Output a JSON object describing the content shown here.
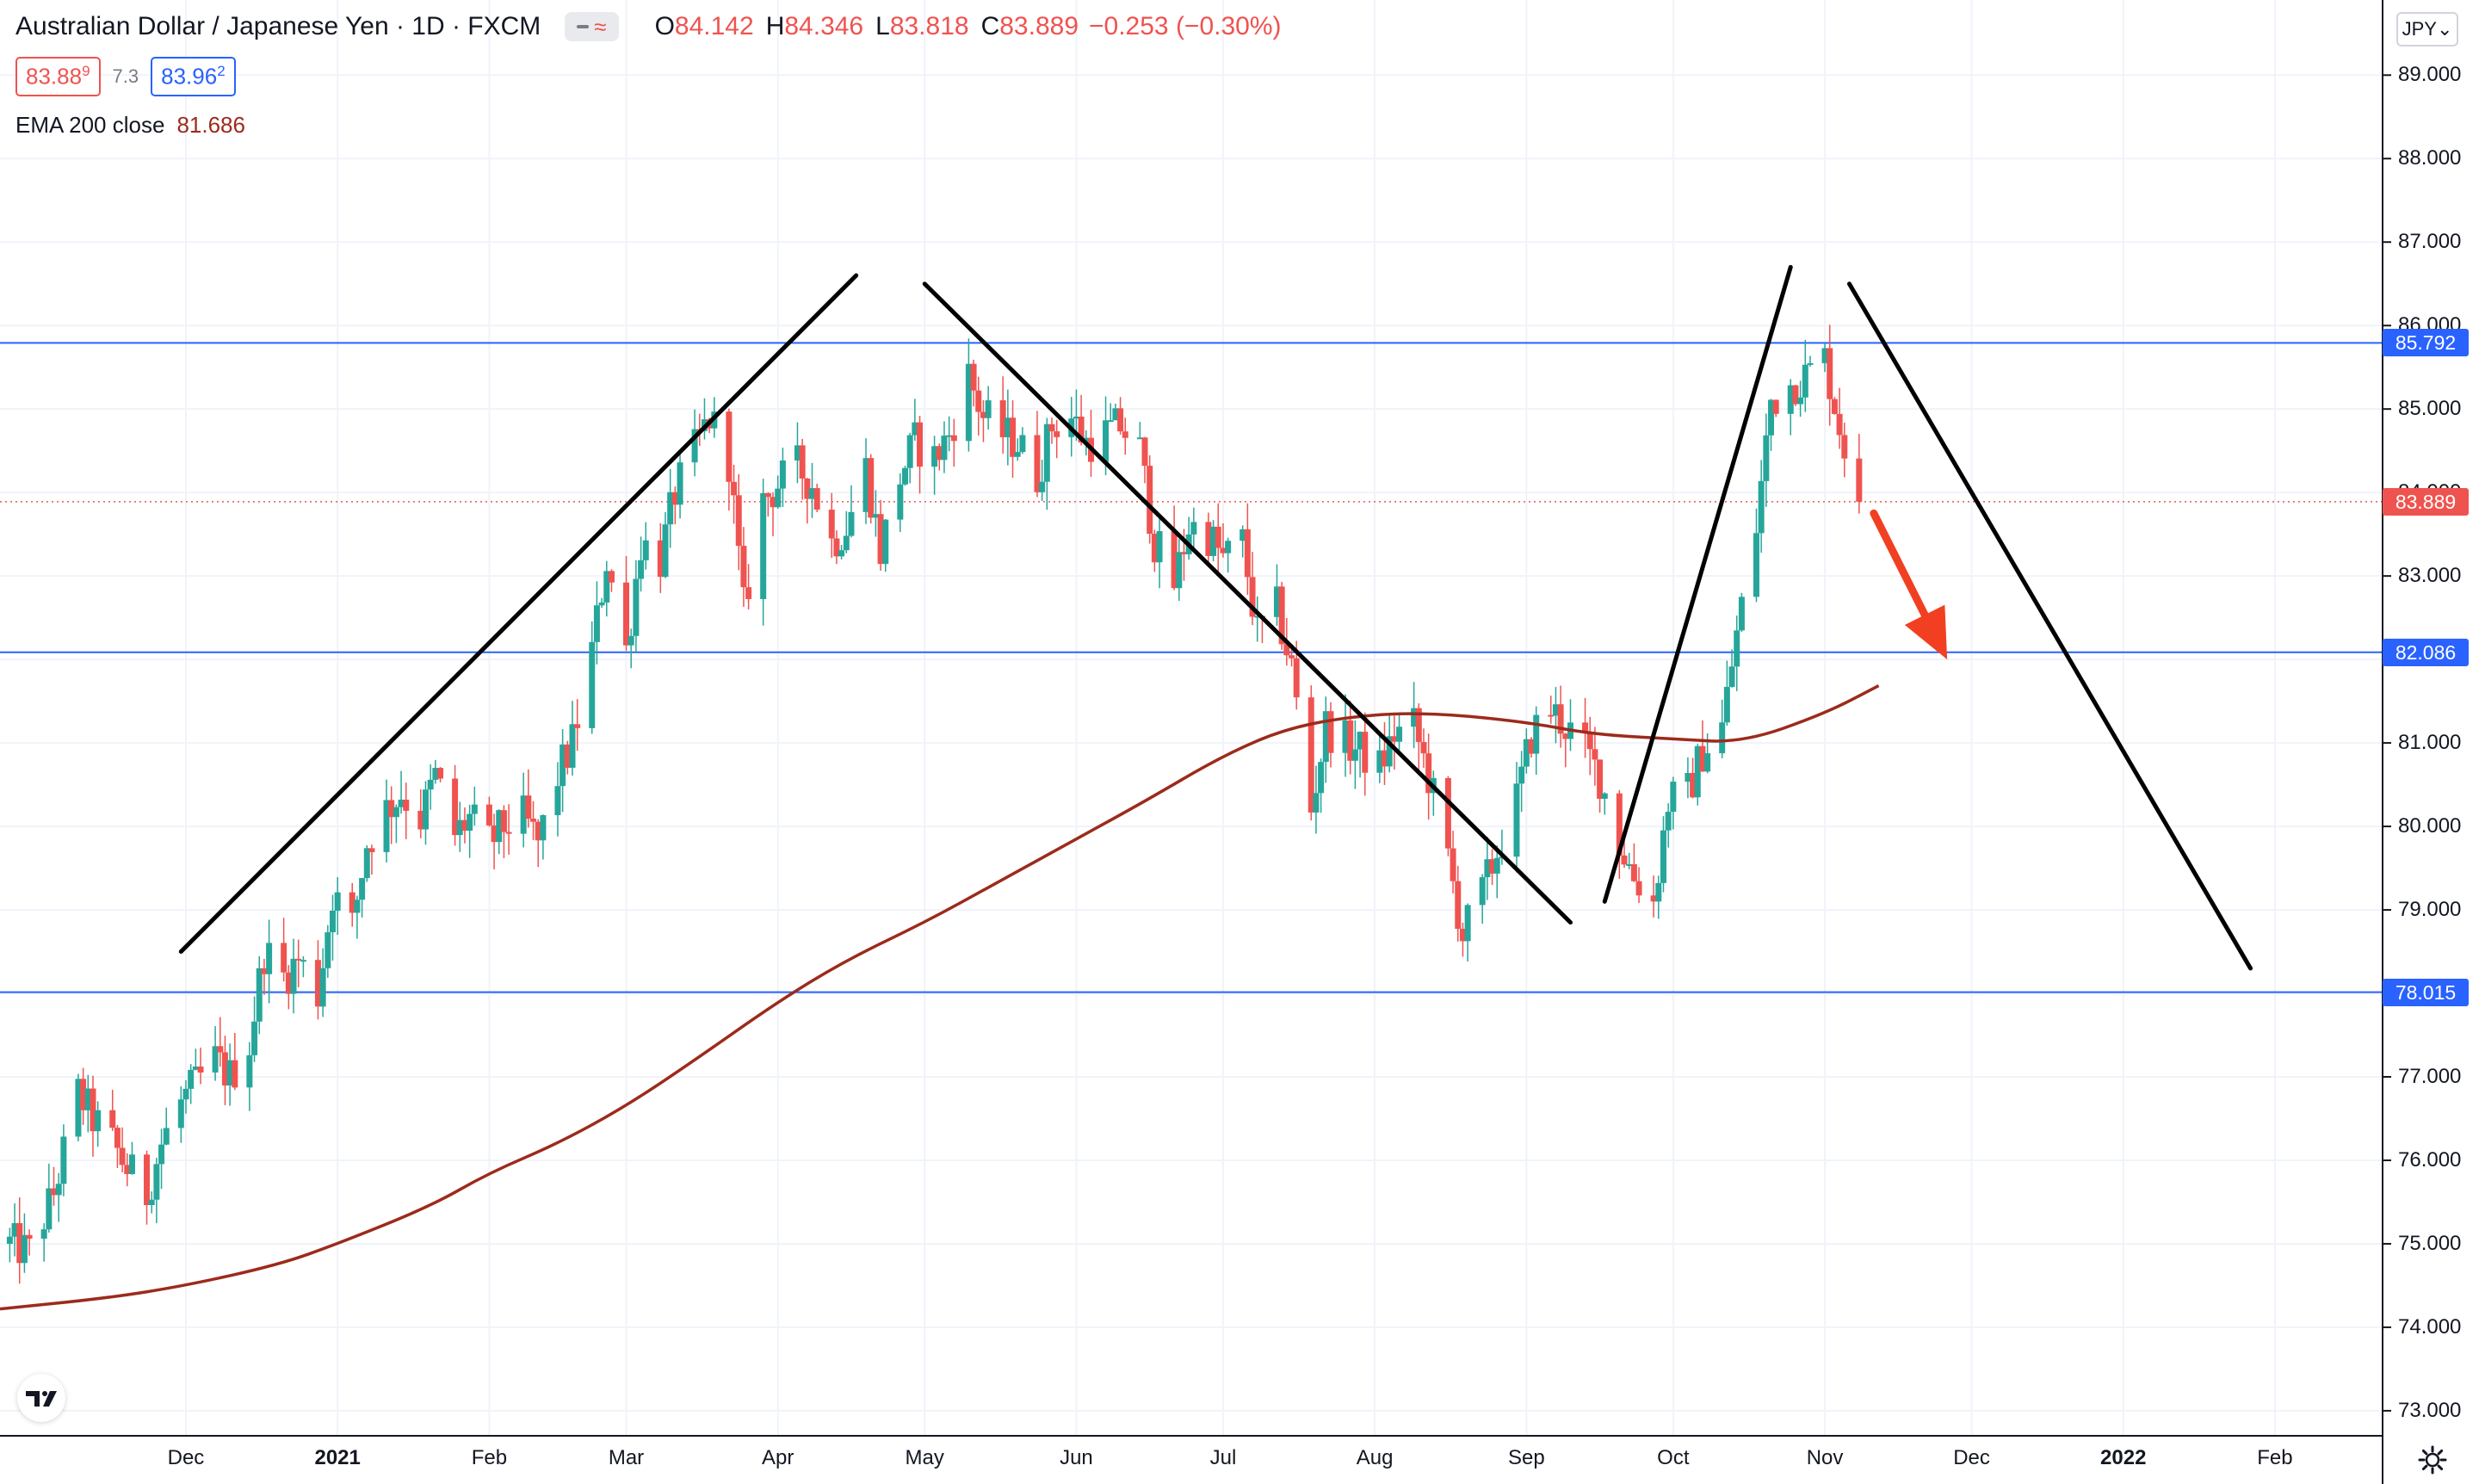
{
  "header": {
    "symbol_title": "Australian Dollar / Japanese Yen · 1D · FXCM",
    "ohlc": [
      {
        "label": "O",
        "value": "84.142"
      },
      {
        "label": "H",
        "value": "84.346"
      },
      {
        "label": "L",
        "value": "83.818"
      },
      {
        "label": "C",
        "value": "83.889"
      }
    ],
    "change": "−0.253 (−0.30%)",
    "bid": {
      "main": "83.88",
      "sup": "9"
    },
    "spread": "7.3",
    "ask": {
      "main": "83.96",
      "sup": "2"
    },
    "ema_label": "EMA 200 close",
    "ema_value": "81.686"
  },
  "toolbar": {
    "currency_label": "JPY",
    "currency_chevron": "⌄",
    "settings_icon": "gear-icon",
    "logo_icon": "tradingview-logo-icon",
    "visibility_icon": "eye-wave-icon"
  },
  "colors": {
    "up": "#26a69a",
    "down": "#ef5350",
    "ema": "#9c2b1b",
    "levels": "#2962ff",
    "trendlines": "#000000",
    "arrow": "#f23f22",
    "last_price": "#ef5350"
  },
  "chart_data": {
    "type": "candlestick",
    "symbol": "AUDJPY",
    "timeframe": "1D",
    "y_range": [
      72.7,
      89.9
    ],
    "x_range": [
      "2020-10-24",
      "2022-02-23"
    ],
    "y_ticks": [
      "73.000",
      "74.000",
      "75.000",
      "76.000",
      "77.000",
      "78.000",
      "79.000",
      "80.000",
      "81.000",
      "82.000",
      "83.000",
      "84.000",
      "85.000",
      "86.000",
      "87.000",
      "88.000",
      "89.000"
    ],
    "x_ticks": [
      {
        "label": "Dec",
        "date": "2020-12-01",
        "bold": false
      },
      {
        "label": "2021",
        "date": "2021-01-01",
        "bold": true
      },
      {
        "label": "Feb",
        "date": "2021-02-01",
        "bold": false
      },
      {
        "label": "Mar",
        "date": "2021-03-01",
        "bold": false
      },
      {
        "label": "Apr",
        "date": "2021-04-01",
        "bold": false
      },
      {
        "label": "May",
        "date": "2021-05-01",
        "bold": false
      },
      {
        "label": "Jun",
        "date": "2021-06-01",
        "bold": false
      },
      {
        "label": "Jul",
        "date": "2021-07-01",
        "bold": false
      },
      {
        "label": "Aug",
        "date": "2021-08-01",
        "bold": false
      },
      {
        "label": "Sep",
        "date": "2021-09-01",
        "bold": false
      },
      {
        "label": "Oct",
        "date": "2021-10-01",
        "bold": false
      },
      {
        "label": "Nov",
        "date": "2021-11-01",
        "bold": false
      },
      {
        "label": "Dec",
        "date": "2021-12-01",
        "bold": false
      },
      {
        "label": "2022",
        "date": "2022-01-01",
        "bold": true
      },
      {
        "label": "Feb",
        "date": "2022-02-01",
        "bold": false
      }
    ],
    "last_price": 83.889,
    "horizontal_levels": [
      85.792,
      82.086,
      78.015
    ],
    "level_labels": [
      "85.792",
      "82.086",
      "78.015"
    ],
    "last_price_label": "83.889",
    "close_series": [
      {
        "date": "2020-10-26",
        "close": 75.0
      },
      {
        "date": "2020-10-30",
        "close": 74.9
      },
      {
        "date": "2020-11-04",
        "close": 75.6
      },
      {
        "date": "2020-11-09",
        "close": 76.8
      },
      {
        "date": "2020-11-12",
        "close": 76.5
      },
      {
        "date": "2020-11-16",
        "close": 76.2
      },
      {
        "date": "2020-11-19",
        "close": 75.9
      },
      {
        "date": "2020-11-23",
        "close": 75.6
      },
      {
        "date": "2020-11-26",
        "close": 76.2
      },
      {
        "date": "2020-11-30",
        "close": 76.7
      },
      {
        "date": "2020-12-03",
        "close": 76.9
      },
      {
        "date": "2020-12-07",
        "close": 77.2
      },
      {
        "date": "2020-12-10",
        "close": 77.0
      },
      {
        "date": "2020-12-14",
        "close": 77.4
      },
      {
        "date": "2020-12-17",
        "close": 78.5
      },
      {
        "date": "2020-12-21",
        "close": 78.2
      },
      {
        "date": "2020-12-24",
        "close": 78.4
      },
      {
        "date": "2020-12-28",
        "close": 78.0
      },
      {
        "date": "2020-12-31",
        "close": 79.2
      },
      {
        "date": "2021-01-04",
        "close": 78.8
      },
      {
        "date": "2021-01-07",
        "close": 79.8
      },
      {
        "date": "2021-01-11",
        "close": 80.2
      },
      {
        "date": "2021-01-14",
        "close": 80.4
      },
      {
        "date": "2021-01-18",
        "close": 80.1
      },
      {
        "date": "2021-01-21",
        "close": 80.6
      },
      {
        "date": "2021-01-25",
        "close": 79.9
      },
      {
        "date": "2021-01-28",
        "close": 80.1
      },
      {
        "date": "2021-02-01",
        "close": 79.8
      },
      {
        "date": "2021-02-04",
        "close": 80.0
      },
      {
        "date": "2021-02-08",
        "close": 80.1
      },
      {
        "date": "2021-02-11",
        "close": 79.8
      },
      {
        "date": "2021-02-15",
        "close": 80.6
      },
      {
        "date": "2021-02-18",
        "close": 81.0
      },
      {
        "date": "2021-02-22",
        "close": 82.1
      },
      {
        "date": "2021-02-25",
        "close": 83.2
      },
      {
        "date": "2021-03-01",
        "close": 82.1
      },
      {
        "date": "2021-03-04",
        "close": 83.4
      },
      {
        "date": "2021-03-08",
        "close": 83.2
      },
      {
        "date": "2021-03-11",
        "close": 84.0
      },
      {
        "date": "2021-03-15",
        "close": 84.5
      },
      {
        "date": "2021-03-18",
        "close": 84.9
      },
      {
        "date": "2021-03-22",
        "close": 84.4
      },
      {
        "date": "2021-03-25",
        "close": 82.6
      },
      {
        "date": "2021-03-29",
        "close": 83.9
      },
      {
        "date": "2021-04-01",
        "close": 84.1
      },
      {
        "date": "2021-04-05",
        "close": 84.3
      },
      {
        "date": "2021-04-08",
        "close": 84.1
      },
      {
        "date": "2021-04-12",
        "close": 83.4
      },
      {
        "date": "2021-04-15",
        "close": 83.6
      },
      {
        "date": "2021-04-19",
        "close": 84.3
      },
      {
        "date": "2021-04-22",
        "close": 83.3
      },
      {
        "date": "2021-04-26",
        "close": 84.2
      },
      {
        "date": "2021-04-29",
        "close": 84.6
      },
      {
        "date": "2021-05-03",
        "close": 84.4
      },
      {
        "date": "2021-05-06",
        "close": 84.7
      },
      {
        "date": "2021-05-10",
        "close": 85.4
      },
      {
        "date": "2021-05-13",
        "close": 84.9
      },
      {
        "date": "2021-05-17",
        "close": 84.7
      },
      {
        "date": "2021-05-20",
        "close": 84.6
      },
      {
        "date": "2021-05-24",
        "close": 84.2
      },
      {
        "date": "2021-05-27",
        "close": 84.8
      },
      {
        "date": "2021-05-31",
        "close": 84.9
      },
      {
        "date": "2021-06-03",
        "close": 84.6
      },
      {
        "date": "2021-06-07",
        "close": 84.7
      },
      {
        "date": "2021-06-10",
        "close": 84.8
      },
      {
        "date": "2021-06-14",
        "close": 84.5
      },
      {
        "date": "2021-06-17",
        "close": 83.4
      },
      {
        "date": "2021-06-21",
        "close": 82.9
      },
      {
        "date": "2021-06-24",
        "close": 83.6
      },
      {
        "date": "2021-06-28",
        "close": 83.5
      },
      {
        "date": "2021-07-01",
        "close": 83.2
      },
      {
        "date": "2021-07-05",
        "close": 83.4
      },
      {
        "date": "2021-07-08",
        "close": 82.3
      },
      {
        "date": "2021-07-12",
        "close": 82.6
      },
      {
        "date": "2021-07-15",
        "close": 81.9
      },
      {
        "date": "2021-07-19",
        "close": 80.2
      },
      {
        "date": "2021-07-22",
        "close": 81.2
      },
      {
        "date": "2021-07-26",
        "close": 81.0
      },
      {
        "date": "2021-07-29",
        "close": 80.9
      },
      {
        "date": "2021-08-02",
        "close": 80.7
      },
      {
        "date": "2021-08-05",
        "close": 81.1
      },
      {
        "date": "2021-08-09",
        "close": 81.2
      },
      {
        "date": "2021-08-12",
        "close": 80.6
      },
      {
        "date": "2021-08-16",
        "close": 79.6
      },
      {
        "date": "2021-08-19",
        "close": 78.7
      },
      {
        "date": "2021-08-23",
        "close": 79.2
      },
      {
        "date": "2021-08-26",
        "close": 79.7
      },
      {
        "date": "2021-08-30",
        "close": 80.3
      },
      {
        "date": "2021-09-02",
        "close": 81.1
      },
      {
        "date": "2021-09-06",
        "close": 81.4
      },
      {
        "date": "2021-09-09",
        "close": 81.2
      },
      {
        "date": "2021-09-13",
        "close": 80.9
      },
      {
        "date": "2021-09-16",
        "close": 80.6
      },
      {
        "date": "2021-09-20",
        "close": 79.8
      },
      {
        "date": "2021-09-23",
        "close": 79.4
      },
      {
        "date": "2021-09-27",
        "close": 79.1
      },
      {
        "date": "2021-09-30",
        "close": 80.3
      },
      {
        "date": "2021-10-04",
        "close": 80.4
      },
      {
        "date": "2021-10-07",
        "close": 80.9
      },
      {
        "date": "2021-10-11",
        "close": 81.2
      },
      {
        "date": "2021-10-14",
        "close": 82.3
      },
      {
        "date": "2021-10-18",
        "close": 83.6
      },
      {
        "date": "2021-10-21",
        "close": 85.1
      },
      {
        "date": "2021-10-25",
        "close": 85.3
      },
      {
        "date": "2021-10-28",
        "close": 85.4
      },
      {
        "date": "2021-11-01",
        "close": 85.6
      },
      {
        "date": "2021-11-04",
        "close": 84.8
      },
      {
        "date": "2021-11-08",
        "close": 83.889
      }
    ],
    "ema_200": [
      {
        "date": "2020-10-24",
        "value": 74.22
      },
      {
        "date": "2020-11-15",
        "value": 74.35
      },
      {
        "date": "2020-12-01",
        "value": 74.5
      },
      {
        "date": "2020-12-20",
        "value": 74.75
      },
      {
        "date": "2021-01-01",
        "value": 75.0
      },
      {
        "date": "2021-01-20",
        "value": 75.45
      },
      {
        "date": "2021-02-01",
        "value": 75.85
      },
      {
        "date": "2021-02-15",
        "value": 76.2
      },
      {
        "date": "2021-03-01",
        "value": 76.65
      },
      {
        "date": "2021-03-15",
        "value": 77.2
      },
      {
        "date": "2021-04-01",
        "value": 77.9
      },
      {
        "date": "2021-04-15",
        "value": 78.4
      },
      {
        "date": "2021-05-01",
        "value": 78.85
      },
      {
        "date": "2021-05-15",
        "value": 79.3
      },
      {
        "date": "2021-06-01",
        "value": 79.85
      },
      {
        "date": "2021-06-15",
        "value": 80.3
      },
      {
        "date": "2021-07-01",
        "value": 80.85
      },
      {
        "date": "2021-07-15",
        "value": 81.2
      },
      {
        "date": "2021-08-01",
        "value": 81.35
      },
      {
        "date": "2021-08-15",
        "value": 81.35
      },
      {
        "date": "2021-09-01",
        "value": 81.25
      },
      {
        "date": "2021-09-15",
        "value": 81.1
      },
      {
        "date": "2021-10-01",
        "value": 81.05
      },
      {
        "date": "2021-10-15",
        "value": 81.0
      },
      {
        "date": "2021-11-01",
        "value": 81.35
      },
      {
        "date": "2021-11-12",
        "value": 81.686
      }
    ],
    "trendlines": [
      {
        "start": {
          "date": "2020-11-30",
          "price": 78.5
        },
        "end": {
          "date": "2021-04-17",
          "price": 86.6
        }
      },
      {
        "start": {
          "date": "2021-05-01",
          "price": 86.5
        },
        "end": {
          "date": "2021-09-10",
          "price": 78.85
        }
      },
      {
        "start": {
          "date": "2021-09-17",
          "price": 79.1
        },
        "end": {
          "date": "2021-10-25",
          "price": 86.7
        }
      },
      {
        "start": {
          "date": "2021-11-06",
          "price": 86.5
        },
        "end": {
          "date": "2022-01-27",
          "price": 78.3
        }
      }
    ],
    "arrow": {
      "start": {
        "date": "2021-11-11",
        "price": 83.75
      },
      "end": {
        "date": "2021-11-26",
        "price": 82.0
      }
    }
  }
}
